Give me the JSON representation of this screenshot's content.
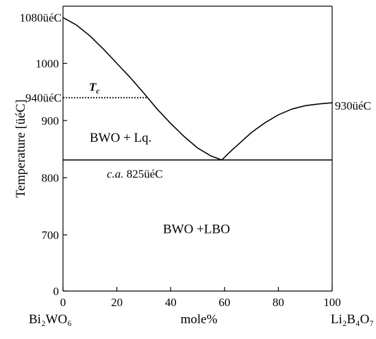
{
  "chart_data": {
    "type": "line",
    "xlim": [
      0,
      100
    ],
    "ylim": [
      600,
      1100
    ],
    "xticks": [
      0,
      20,
      40,
      60,
      80,
      100
    ],
    "yticks": [
      700,
      800,
      900,
      1000
    ],
    "y_break_tick": 0,
    "xlabel": "mole%",
    "ylabel": "Temperature [üéC]",
    "endmember_left": "Bi₂WO₆",
    "endmember_right": "Li₂B₄O₇",
    "grid": false,
    "legend": "none",
    "series": [
      {
        "values": [
          [
            0,
            1080
          ],
          [
            5,
            1067
          ],
          [
            10,
            1048
          ],
          [
            15,
            1025
          ],
          [
            20,
            1000
          ],
          [
            25,
            975
          ],
          [
            30,
            948
          ],
          [
            35,
            920
          ],
          [
            40,
            895
          ],
          [
            45,
            872
          ],
          [
            50,
            852
          ],
          [
            55,
            838
          ],
          [
            59,
            831
          ]
        ]
      },
      {
        "values": [
          [
            59,
            831
          ],
          [
            62,
            845
          ],
          [
            66,
            862
          ],
          [
            70,
            879
          ],
          [
            75,
            896
          ],
          [
            80,
            910
          ],
          [
            85,
            920
          ],
          [
            90,
            926
          ],
          [
            95,
            929
          ],
          [
            100,
            931
          ]
        ]
      },
      {
        "style": "solid",
        "values": [
          [
            0,
            831
          ],
          [
            100,
            831
          ]
        ]
      },
      {
        "style": "dotted",
        "values": [
          [
            0,
            940
          ],
          [
            31,
            940
          ]
        ]
      }
    ],
    "annotations": {
      "label_1080": "1080üéC",
      "label_940": "940üéC",
      "label_930": "930üéC",
      "tc_main": "T",
      "tc_sub": "c",
      "eutectic_italic": "c.a.",
      "eutectic_value": "825üéC",
      "region_upper": "BWO + Lq.",
      "region_lower": "BWO +LBO"
    }
  }
}
